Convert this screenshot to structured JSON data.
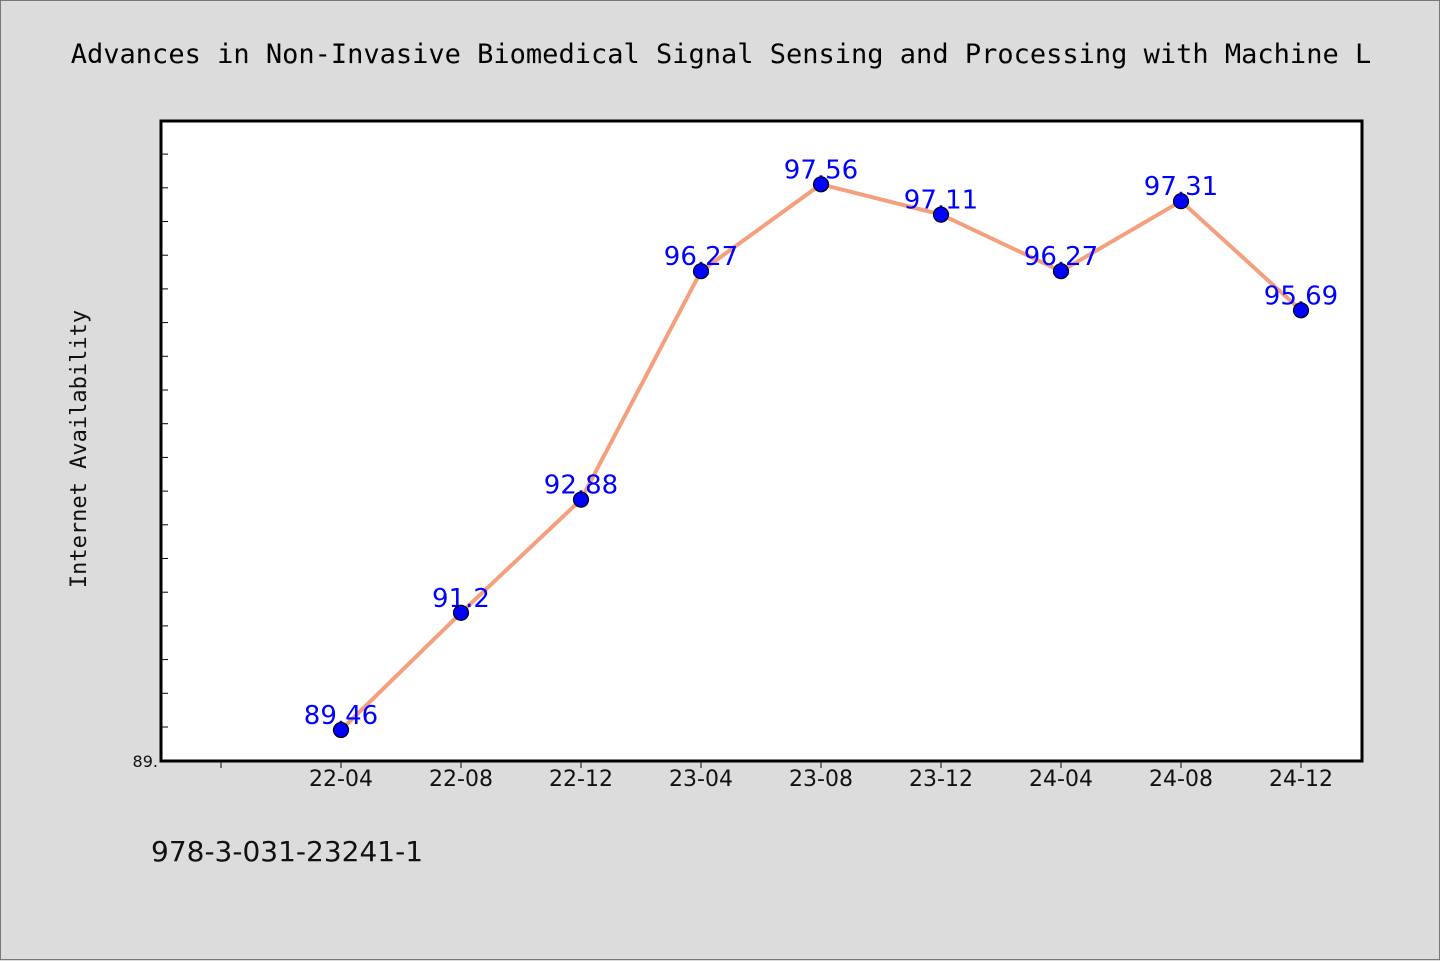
{
  "chart_data": {
    "type": "line",
    "title": "Advances in Non-Invasive Biomedical Signal Sensing and Processing with Machine L",
    "xlabel": "",
    "ylabel": "Internet Availability",
    "categories": [
      "22-04",
      "22-08",
      "22-12",
      "23-04",
      "23-08",
      "23-12",
      "24-04",
      "24-08",
      "24-12"
    ],
    "series": [
      {
        "values": [
          89.46,
          91.2,
          92.88,
          96.27,
          97.56,
          97.11,
          96.27,
          97.31,
          95.69
        ]
      }
    ],
    "data_labels": [
      "89.46",
      "91.2",
      "92.88",
      "96.27",
      "97.56",
      "97.11",
      "96.27",
      "97.31",
      "95.69"
    ],
    "y_tick_label": "89.",
    "ylim": [
      89,
      98.5
    ],
    "grid": false,
    "colors": {
      "line": "#f4a07e",
      "marker": "#0000ff",
      "label": "#0000ff",
      "plot_bg": "#ffffff",
      "page_bg": "#dcdcdc"
    }
  },
  "footer": {
    "code": "978-3-031-23241-1"
  }
}
